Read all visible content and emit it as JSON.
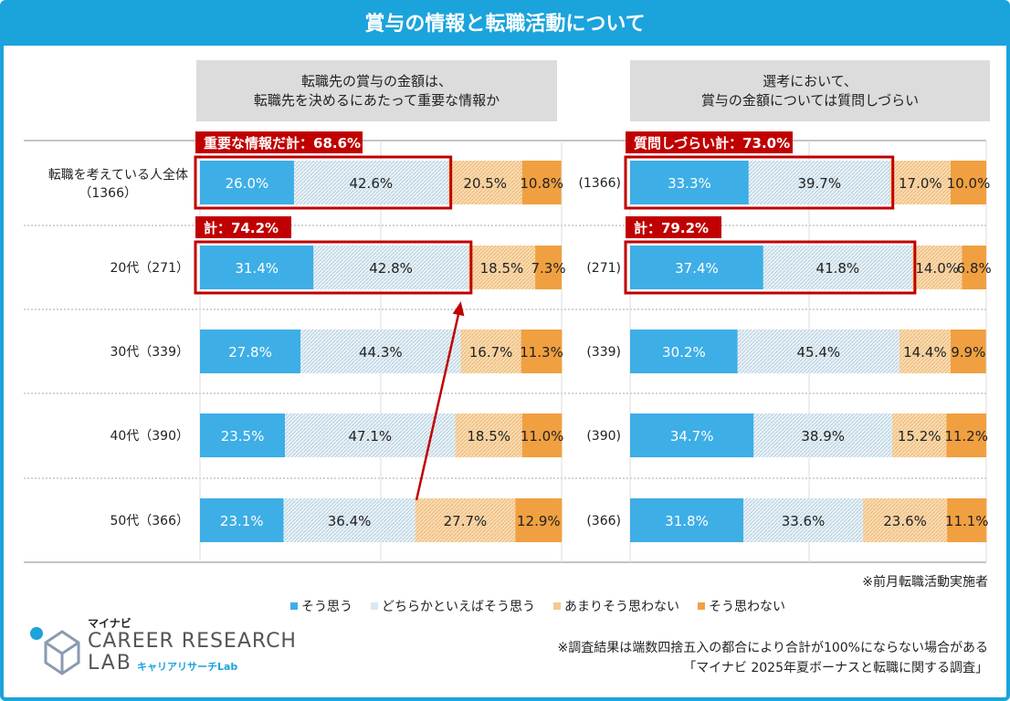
{
  "title": "賞与の情報と転職活動について",
  "questions": {
    "left": [
      "転職先の賞与の金額は、",
      "転職先を決めるにあたって重要な情報か"
    ],
    "right": [
      "選考において、",
      "賞与の金額については質問しづらい"
    ]
  },
  "colors": {
    "accent": "#1ba3dc",
    "agree": "#3eaee6",
    "somewhat_agree": "#d7e8f2",
    "somewhat_disagree": "#f5c890",
    "disagree": "#f0a040",
    "highlight": "#c00000"
  },
  "chart_data": [
    {
      "type": "bar",
      "orientation": "horizontal-stacked-100",
      "title": "転職先の賞与の金額は、転職先を決めるにあたって重要な情報か",
      "categories": [
        "転職を考えている人全体（1366）",
        "20代（271）",
        "30代（339）",
        "40代（390）",
        "50代（366）"
      ],
      "series": [
        {
          "name": "そう思う",
          "values": [
            26.0,
            31.4,
            27.8,
            23.5,
            23.1
          ]
        },
        {
          "name": "どちらかといえばそう思う",
          "values": [
            42.6,
            42.8,
            44.3,
            47.1,
            36.4
          ]
        },
        {
          "name": "あまりそう思わない",
          "values": [
            20.5,
            18.5,
            16.7,
            18.5,
            27.7
          ]
        },
        {
          "name": "そう思わない",
          "values": [
            10.8,
            7.3,
            11.3,
            11.0,
            12.9
          ]
        }
      ],
      "highlights": [
        {
          "row": 0,
          "label": "重要な情報だ計：68.6%"
        },
        {
          "row": 1,
          "label": "計：74.2%"
        }
      ]
    },
    {
      "type": "bar",
      "orientation": "horizontal-stacked-100",
      "title": "選考において、賞与の金額については質問しづらい",
      "categories": [
        "(1366)",
        "(271)",
        "(339)",
        "(390)",
        "(366)"
      ],
      "series": [
        {
          "name": "そう思う",
          "values": [
            33.3,
            37.4,
            30.2,
            34.7,
            31.8
          ]
        },
        {
          "name": "どちらかといえばそう思う",
          "values": [
            39.7,
            41.8,
            45.4,
            38.9,
            33.6
          ]
        },
        {
          "name": "あまりそう思わない",
          "values": [
            17.0,
            14.0,
            14.4,
            15.2,
            23.6
          ]
        },
        {
          "name": "そう思わない",
          "values": [
            10.0,
            6.8,
            9.9,
            11.2,
            11.1
          ]
        }
      ],
      "highlights": [
        {
          "row": 0,
          "label": "質問しづらい計：73.0%"
        },
        {
          "row": 1,
          "label": "計：79.2%"
        }
      ]
    }
  ],
  "legend": [
    "そう思う",
    "どちらかといえばそう思う",
    "あまりそう思わない",
    "そう思わない"
  ],
  "notes": {
    "respondents": "※前月転職活動実施者",
    "rounding": "※調査結果は端数四捨五入の都合により合計が100%にならない場合がある",
    "source": "「マイナビ 2025年夏ボーナスと転職に関する調査」"
  },
  "logo": {
    "brand_small": "マイナビ",
    "line1": "CAREER RESEARCH",
    "line2": "LAB",
    "sub": "キャリアリサーチLab"
  }
}
